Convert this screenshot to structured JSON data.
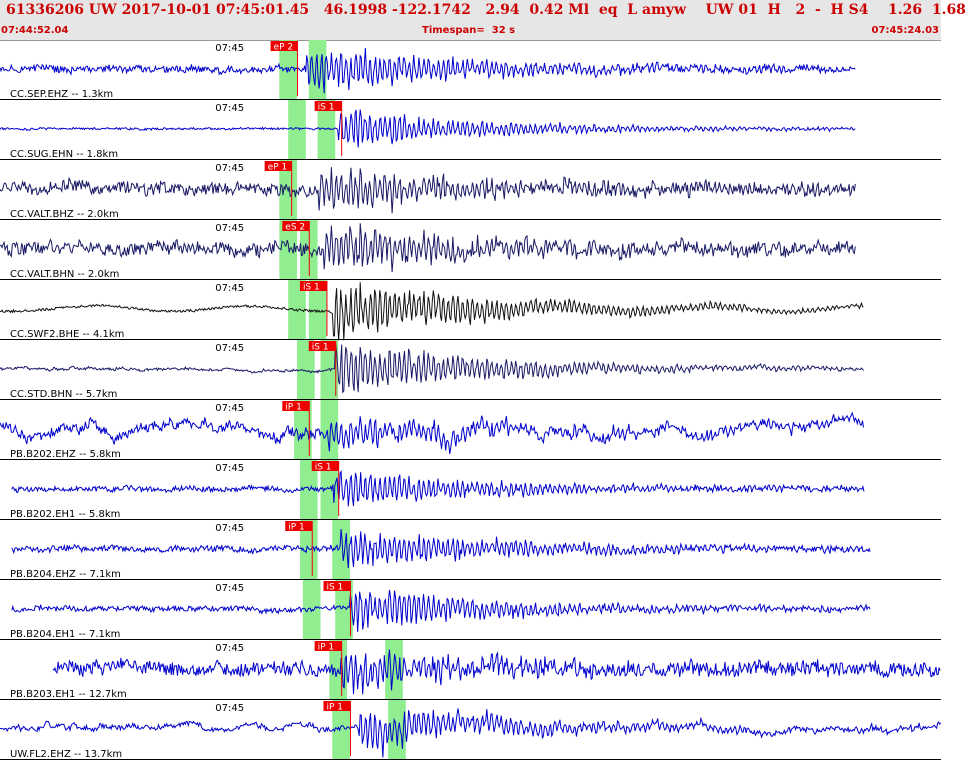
{
  "header": {
    "title": "61336206 UW 2017-10-01 07:45:01.45   46.1998 -122.1742   2.94  0.42 Ml  eq  L amyw    UW 01  H   2  -  H S4    1.26  1.68",
    "start_time": "07:44:52.04",
    "timespan": "Timespan=  32 s",
    "end_time": "07:45:24.03"
  },
  "chart_data": {
    "type": "line",
    "x_unit": "s",
    "x_range": [
      0,
      32
    ],
    "minute_marker_time": 8.0,
    "minute_marker_label": "07:45",
    "colors": {
      "blue": "#0000cc",
      "navy": "#1a1a66",
      "black": "#111111",
      "pick": "#ee0000",
      "window": "#90ee90"
    },
    "series": [
      {
        "label": "CC.SEP.EHZ -- 1.3km",
        "color": "blue",
        "amp": 0.72,
        "noise": 0.16,
        "trace_start": 0.0,
        "trace_end": 29.1,
        "onset": 10.4,
        "style": "hf",
        "picks": [
          {
            "label": "eP 2",
            "time": 9.2
          }
        ],
        "windows": [
          [
            9.5,
            10.1
          ],
          [
            10.5,
            11.1
          ]
        ]
      },
      {
        "label": "CC.SUG.EHN -- 1.8km",
        "color": "blue",
        "amp": 0.55,
        "noise": 0.05,
        "trace_start": 0.0,
        "trace_end": 29.1,
        "onset": 11.5,
        "style": "hf",
        "picks": [
          {
            "label": "iS 1",
            "time": 10.7
          }
        ],
        "windows": [
          [
            9.8,
            10.4
          ],
          [
            10.8,
            11.4
          ]
        ]
      },
      {
        "label": "CC.VALT.BHZ -- 2.0km",
        "color": "navy",
        "amp": 0.6,
        "noise": 0.28,
        "trace_start": 0.0,
        "trace_end": 29.1,
        "onset": 10.8,
        "style": "hf",
        "picks": [
          {
            "label": "eP 1",
            "time": 9.0
          }
        ],
        "windows": [
          [
            9.5,
            10.1
          ]
        ]
      },
      {
        "label": "CC.VALT.BHN -- 2.0km",
        "color": "navy",
        "amp": 0.65,
        "noise": 0.3,
        "trace_start": 0.0,
        "trace_end": 29.1,
        "onset": 11.0,
        "style": "hf",
        "picks": [
          {
            "label": "eS 2",
            "time": 9.6
          }
        ],
        "windows": [
          [
            9.5,
            10.1
          ],
          [
            10.2,
            10.8
          ]
        ]
      },
      {
        "label": "CC.SWF2.BHE -- 4.1km",
        "color": "black",
        "amp": 0.85,
        "noise": 0.12,
        "trace_start": 0.0,
        "trace_end": 29.4,
        "onset": 11.3,
        "style": "mixed",
        "picks": [
          {
            "label": "iS 1",
            "time": 10.2
          }
        ],
        "windows": [
          [
            9.8,
            10.4
          ],
          [
            10.5,
            11.1
          ]
        ]
      },
      {
        "label": "CC.STD.BHN -- 5.7km",
        "color": "navy",
        "amp": 0.75,
        "noise": 0.15,
        "trace_start": 0.0,
        "trace_end": 29.4,
        "onset": 11.4,
        "style": "lf",
        "picks": [
          {
            "label": "iS 1",
            "time": 10.5
          }
        ],
        "windows": [
          [
            10.1,
            10.7
          ],
          [
            10.9,
            11.5
          ]
        ]
      },
      {
        "label": "PB.B202.EHZ -- 5.8km",
        "color": "blue",
        "amp": 0.5,
        "noise": 0.55,
        "trace_start": 0.0,
        "trace_end": 29.4,
        "onset": 11.1,
        "style": "lf",
        "picks": [
          {
            "label": "iP 1",
            "time": 9.6
          }
        ],
        "windows": [
          [
            10.0,
            10.6
          ],
          [
            10.9,
            11.5
          ]
        ]
      },
      {
        "label": "PB.B202.EH1 -- 5.8km",
        "color": "blue",
        "amp": 0.55,
        "noise": 0.12,
        "trace_start": 0.4,
        "trace_end": 29.4,
        "onset": 11.3,
        "style": "hf",
        "picks": [
          {
            "label": "iS 1",
            "time": 10.6
          }
        ],
        "windows": [
          [
            10.2,
            10.8
          ],
          [
            10.9,
            11.5
          ]
        ]
      },
      {
        "label": "PB.B204.EHZ -- 7.1km",
        "color": "blue",
        "amp": 0.6,
        "noise": 0.14,
        "trace_start": 0.4,
        "trace_end": 29.6,
        "onset": 11.6,
        "style": "hf",
        "picks": [
          {
            "label": "iP 1",
            "time": 9.7
          }
        ],
        "windows": [
          [
            10.2,
            10.8
          ],
          [
            11.3,
            11.9
          ]
        ]
      },
      {
        "label": "PB.B204.EH1 -- 7.1km",
        "color": "blue",
        "amp": 0.6,
        "noise": 0.12,
        "trace_start": 0.4,
        "trace_end": 29.6,
        "onset": 11.9,
        "style": "hf",
        "picks": [
          {
            "label": "iS 1",
            "time": 11.0
          }
        ],
        "windows": [
          [
            10.3,
            10.9
          ],
          [
            11.4,
            12.0
          ]
        ]
      },
      {
        "label": "PB.B203.EH1 -- 12.7km",
        "color": "blue",
        "amp": 0.55,
        "noise": 0.32,
        "trace_start": 1.8,
        "trace_end": 32.0,
        "onset": 11.6,
        "style": "hf",
        "picks": [
          {
            "label": "iP 1",
            "time": 10.7
          }
        ],
        "windows": [
          [
            11.2,
            11.8
          ],
          [
            13.1,
            13.7
          ]
        ]
      },
      {
        "label": "UW.FL2.EHZ -- 13.7km",
        "color": "blue",
        "amp": 0.6,
        "noise": 0.3,
        "trace_start": 0.0,
        "trace_end": 32.0,
        "onset": 12.2,
        "style": "lf",
        "picks": [
          {
            "label": "iP 1",
            "time": 11.0
          }
        ],
        "windows": [
          [
            11.3,
            11.9
          ],
          [
            13.2,
            13.8
          ]
        ]
      }
    ]
  }
}
